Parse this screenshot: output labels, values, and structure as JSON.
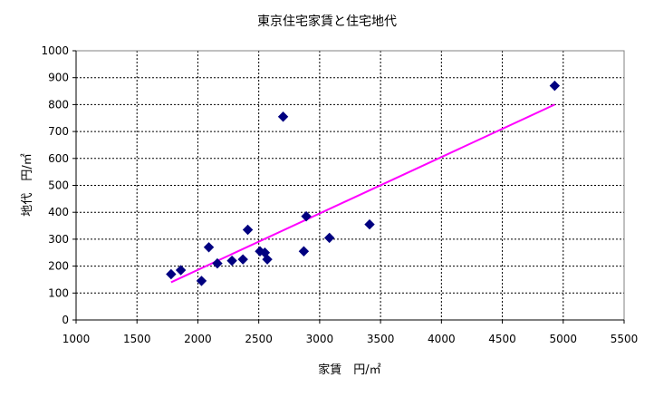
{
  "chart_data": {
    "type": "scatter",
    "title": "東京住宅家賃と住宅地代",
    "xlabel": "家賃　円/㎡",
    "ylabel": "地代　円/㎡",
    "xlim": [
      1000,
      5500
    ],
    "ylim": [
      0,
      1000
    ],
    "xticks": [
      1000,
      1500,
      2000,
      2500,
      3000,
      3500,
      4000,
      4500,
      5000,
      5500
    ],
    "yticks": [
      0,
      100,
      200,
      300,
      400,
      500,
      600,
      700,
      800,
      900,
      1000
    ],
    "grid": true,
    "legend": "none",
    "series": [
      {
        "marker": "diamond",
        "color": "#000080",
        "points": [
          {
            "x": 1780,
            "y": 170
          },
          {
            "x": 1860,
            "y": 185
          },
          {
            "x": 2030,
            "y": 145
          },
          {
            "x": 2090,
            "y": 270
          },
          {
            "x": 2160,
            "y": 210
          },
          {
            "x": 2280,
            "y": 220
          },
          {
            "x": 2370,
            "y": 225
          },
          {
            "x": 2410,
            "y": 335
          },
          {
            "x": 2510,
            "y": 255
          },
          {
            "x": 2550,
            "y": 250
          },
          {
            "x": 2570,
            "y": 225
          },
          {
            "x": 2700,
            "y": 755
          },
          {
            "x": 2870,
            "y": 255
          },
          {
            "x": 2890,
            "y": 385
          },
          {
            "x": 3080,
            "y": 305
          },
          {
            "x": 3410,
            "y": 355
          },
          {
            "x": 4930,
            "y": 870
          }
        ]
      }
    ],
    "trendline": {
      "type": "linear",
      "color": "#ff00ff",
      "x": [
        1780,
        4930
      ],
      "y": [
        140,
        800
      ]
    }
  }
}
